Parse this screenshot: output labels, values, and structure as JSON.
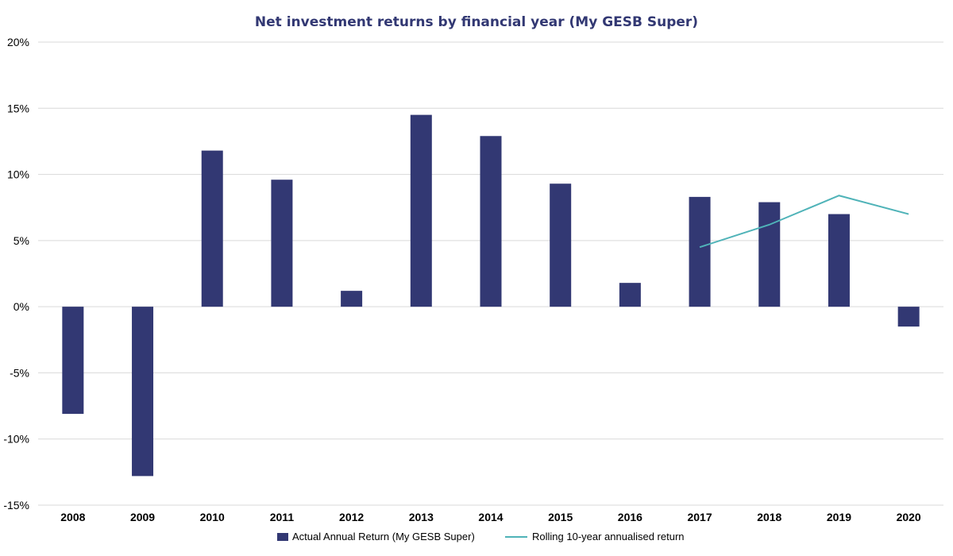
{
  "chart_data": {
    "type": "bar",
    "title": "Net investment returns by financial year (My GESB Super)",
    "categories": [
      "2008",
      "2009",
      "2010",
      "2011",
      "2012",
      "2013",
      "2014",
      "2015",
      "2016",
      "2017",
      "2018",
      "2019",
      "2020"
    ],
    "series": [
      {
        "name": "Actual Annual Return (My GESB Super)",
        "type": "bar",
        "color": "#323873",
        "values": [
          -8.1,
          -12.8,
          11.8,
          9.6,
          1.2,
          14.5,
          12.9,
          9.3,
          1.8,
          8.3,
          7.9,
          7.0,
          -1.5
        ]
      },
      {
        "name": "Rolling 10-year annualised return",
        "type": "line",
        "color": "#4fb3b8",
        "values": [
          null,
          null,
          null,
          null,
          null,
          null,
          null,
          null,
          null,
          4.5,
          6.2,
          8.4,
          7.0
        ]
      }
    ],
    "y_ticks": [
      "20%",
      "15%",
      "10%",
      "5%",
      "0%",
      "-5%",
      "-10%",
      "-15%"
    ],
    "y_tick_values": [
      20,
      15,
      10,
      5,
      0,
      -5,
      -10,
      -15
    ],
    "ylim": [
      -15,
      20
    ],
    "grid": true,
    "legend_position": "bottom"
  }
}
